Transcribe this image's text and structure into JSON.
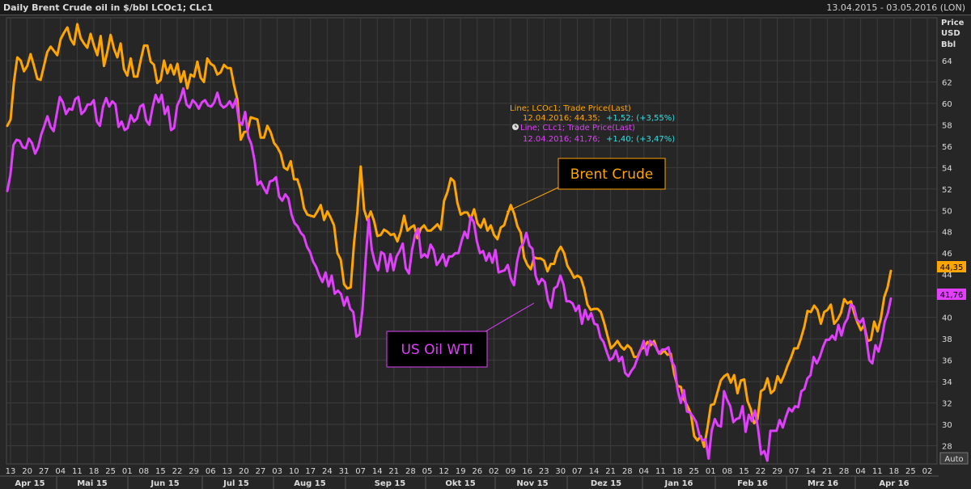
{
  "header": {
    "title": "Daily Brent Crude oil in $/bbl LCOc1; CLc1",
    "date_range": "13.04.2015 - 03.05.2016 (LON)"
  },
  "axis": {
    "unit_label": [
      "Price",
      "USD",
      "Bbl"
    ],
    "auto_label": "Auto"
  },
  "tooltip": {
    "line1_title": "Line; LCOc1; Trade Price(Last)",
    "line1_date_value": "12.04.2016; 44,35;",
    "line1_change": "+1,52; (+3,55%)",
    "line2_title": "Line; CLc1; Trade Price(Last)",
    "line2_date_value": "12.04.2016; 41,76;",
    "line2_change": "+1,40; (+3,47%)"
  },
  "labels": {
    "brent": "Brent Crude",
    "wti": "US Oil WTI"
  },
  "price_tags": {
    "brent": "44,35",
    "wti": "41,76"
  },
  "colors": {
    "background": "#262626",
    "brent": "#FFA500",
    "wti": "#E040FB",
    "grid": "#3c3c3c",
    "text": "#dcdcdc",
    "tooltip_change": "#33e0e0"
  },
  "chart_data": {
    "type": "line",
    "title": "Daily Brent Crude oil in $/bbl LCOc1; CLc1",
    "ylabel": "Price USD Bbl",
    "ylim": [
      26.3,
      68
    ],
    "yticks": [
      28,
      30,
      32,
      34,
      36,
      38,
      40,
      42,
      44,
      46,
      48,
      50,
      52,
      54,
      56,
      58,
      60,
      62,
      64
    ],
    "x_day_ticks": [
      "13",
      "20",
      "27",
      "04",
      "11",
      "18",
      "25",
      "01",
      "08",
      "15",
      "22",
      "29",
      "06",
      "13",
      "20",
      "27",
      "03",
      "10",
      "17",
      "24",
      "31",
      "07",
      "14",
      "21",
      "28",
      "05",
      "12",
      "19",
      "26",
      "02",
      "09",
      "16",
      "23",
      "30",
      "07",
      "14",
      "21",
      "28",
      "04",
      "11",
      "18",
      "25",
      "01",
      "08",
      "15",
      "22",
      "29",
      "07",
      "14",
      "21",
      "28",
      "04",
      "11",
      "18",
      "25",
      "02"
    ],
    "x_month_labels": [
      "Apr 15",
      "Mai 15",
      "Jun 15",
      "Jul 15",
      "Aug 15",
      "Sep 15",
      "Okt 15",
      "Nov 15",
      "Dez 15",
      "Jan 16",
      "Feb 16",
      "Mrz 16",
      "Apr 16"
    ],
    "series": [
      {
        "name": "LCOc1",
        "color": "#FFA500",
        "values": [
          57.9,
          58.5,
          62,
          64.3,
          64,
          63,
          63.5,
          64.6,
          63.5,
          62.3,
          62.2,
          63.5,
          64.8,
          65.3,
          64.9,
          64.5,
          66,
          66.6,
          67.1,
          66,
          65.5,
          67.4,
          66.1,
          65.6,
          65.2,
          66.5,
          65.4,
          64.5,
          66.3,
          63.5,
          64.8,
          66.4,
          65.1,
          64.3,
          65.6,
          63.2,
          62.6,
          64.2,
          62.5,
          62.5,
          64,
          65.4,
          65.4,
          63.9,
          63.6,
          61.9,
          62.2,
          64,
          62.8,
          63.6,
          62.7,
          63.7,
          62,
          63,
          61.4,
          62.7,
          62.5,
          63.9,
          62.4,
          62,
          64.2,
          63.7,
          63.5,
          62.7,
          62.9,
          63.6,
          63.3,
          63.3,
          61.7,
          60.4,
          56.6,
          57.3,
          57.4,
          58.7,
          58.6,
          58.5,
          56.8,
          56.8,
          57.9,
          57.3,
          56.3,
          55.9,
          55.3,
          54,
          53.8,
          54.6,
          52.9,
          52.9,
          51.9,
          50.2,
          49.6,
          49.5,
          49.4,
          49.9,
          50.5,
          49.1,
          49.9,
          49.3,
          48.6,
          46,
          45.4,
          43.1,
          42.7,
          42.8,
          47,
          49.9,
          54.1,
          50.1,
          49.1,
          49.9,
          49,
          47.6,
          47.7,
          48.2,
          48,
          47.7,
          47.8,
          47.1,
          48,
          49.5,
          48.1,
          48.4,
          48.6,
          47.4,
          48.3,
          48.6,
          48.1,
          48.1,
          48.4,
          48.7,
          48.2,
          50.9,
          51.7,
          53,
          52.7,
          50.7,
          49.6,
          49.8,
          49.8,
          49.2,
          50.1,
          48.8,
          48.4,
          49.2,
          48.1,
          48.6,
          47.7,
          47.3,
          48.4,
          48.6,
          49.6,
          50.5,
          49.7,
          48.5,
          47.9,
          45.6,
          44.9,
          44.5,
          45.6,
          45.5,
          45.5,
          45.3,
          44.3,
          45,
          45,
          46.1,
          46.6,
          46,
          44.8,
          44.3,
          43.7,
          43.9,
          43.7,
          42.7,
          41.2,
          40.7,
          40.8,
          40.8,
          40.5,
          39.5,
          38.3,
          37.1,
          37.4,
          37.8,
          37.3,
          37,
          37.4,
          37.1,
          36.3,
          36.3,
          37,
          37.2,
          37.7,
          37.4,
          37.8,
          36.9,
          36.6,
          36.9,
          36.5,
          36.6,
          34.7,
          33.6,
          33.5,
          32.3,
          31.7,
          31,
          28.9,
          28.5,
          28.9,
          27.9,
          29.7,
          31.8,
          31.9,
          33,
          34.1,
          34.5,
          34.7,
          33.9,
          34.6,
          32.9,
          34.1,
          34.2,
          32.2,
          31.4,
          30.1,
          30.5,
          33.1,
          33.3,
          34.3,
          32.9,
          33.2,
          34.5,
          33.9,
          34.6,
          35.5,
          36.2,
          37.1,
          37.1,
          38,
          39.1,
          40.6,
          40.5,
          41.1,
          40.7,
          39.4,
          40.5,
          40.7,
          41.2,
          39.4,
          39.8,
          40.4,
          41.7,
          41.3,
          41.5,
          40.4,
          39.5,
          38.8,
          39.3,
          37.8,
          37.9,
          39.6,
          38.7,
          39.9,
          41.9,
          42.8,
          44.35
        ]
      },
      {
        "name": "CLc1",
        "color": "#E040FB",
        "values": [
          51.8,
          53.3,
          56.1,
          56.6,
          56.5,
          55.9,
          55.8,
          56.7,
          56.3,
          55.3,
          55.9,
          57.1,
          57.9,
          58.8,
          57.8,
          57.4,
          59,
          60.6,
          60.1,
          59,
          59.5,
          59.4,
          60.4,
          60.6,
          59,
          59.3,
          59.9,
          59.9,
          60.3,
          58.3,
          57.9,
          59.7,
          60.5,
          59.7,
          60.2,
          59.9,
          57.8,
          58.3,
          57.5,
          57.7,
          58.9,
          58.3,
          58.6,
          59.7,
          59.9,
          58.4,
          58,
          59.6,
          60.8,
          60.1,
          60.8,
          59,
          59.7,
          57.5,
          57.7,
          59.8,
          60.4,
          61.4,
          59.9,
          59.6,
          60.3,
          60,
          59.5,
          60.1,
          60.3,
          59.8,
          59.7,
          60.1,
          61,
          59.9,
          59.6,
          59.8,
          60.2,
          59.6,
          60.4,
          58.3,
          58,
          59.2,
          56.9,
          56.2,
          54.7,
          52.4,
          52.7,
          52.1,
          51.6,
          52.7,
          52.8,
          53.1,
          51.3,
          50.9,
          51.5,
          51.1,
          49.6,
          48.8,
          48.5,
          47.9,
          47.6,
          46.6,
          46.1,
          45.2,
          44.7,
          43.9,
          43.3,
          44.2,
          42.9,
          43.9,
          42.2,
          42.5,
          42.2,
          41.1,
          41.9,
          40.8,
          40.5,
          38.2,
          38.4,
          40.8,
          45.4,
          49.2,
          46.3,
          45.1,
          44.4,
          46.1,
          45.9,
          44.3,
          45.9,
          44.4,
          45.7,
          46.2,
          46.9,
          44.6,
          44.1,
          46.3,
          47.7,
          48.3,
          45.6,
          45.9,
          45.6,
          46.8,
          46.3,
          44.9,
          45.3,
          45.9,
          44.8,
          45.7,
          45.7,
          46,
          46,
          47.1,
          48,
          47.4,
          49.4,
          48.9,
          47.1,
          46,
          46.2,
          45.3,
          46,
          45.1,
          46.3,
          44.2,
          44.3,
          44.4,
          44.9,
          43.6,
          43,
          45.2,
          46.5,
          46.9,
          47.9,
          46.7,
          46.4,
          43.9,
          43.1,
          43.6,
          43.3,
          41.6,
          40.9,
          42.7,
          42.9,
          43.9,
          43.1,
          41.5,
          41.5,
          41.3,
          40.6,
          41.1,
          39.4,
          40.7,
          39.8,
          40.4,
          39.4,
          39.3,
          38.1,
          37.7,
          36.8,
          36,
          36.2,
          36.9,
          35.9,
          36.3,
          34.8,
          34.5,
          35,
          35.4,
          36.2,
          36.9,
          37.8,
          36.5,
          37.8,
          37.6,
          37.2,
          36.6,
          37,
          37,
          37.2,
          35.9,
          35.4,
          33.2,
          32,
          33.2,
          31.2,
          31.1,
          30.7,
          30.2,
          29,
          28.5,
          28.6,
          26.8,
          29.4,
          30.5,
          29.9,
          29.8,
          33.1,
          32.3,
          31.7,
          30.2,
          30.5,
          30.6,
          31.7,
          29.3,
          30.9,
          30.3,
          31.3,
          29.6,
          27.2,
          27.5,
          26.6,
          29.4,
          29.4,
          29.4,
          30.4,
          29.7,
          30.7,
          31.5,
          31.2,
          31.7,
          31.6,
          33.1,
          33.3,
          34.3,
          34.6,
          36.3,
          35.7,
          36.3,
          37.2,
          37.9,
          37.9,
          38.3,
          37.9,
          39.3,
          38.3,
          39.4,
          39.9,
          41.2,
          41,
          39.8,
          39.5,
          39.9,
          38.1,
          36,
          35.7,
          37.4,
          36.8,
          37.9,
          39.6,
          40.4,
          41.76
        ]
      }
    ]
  }
}
